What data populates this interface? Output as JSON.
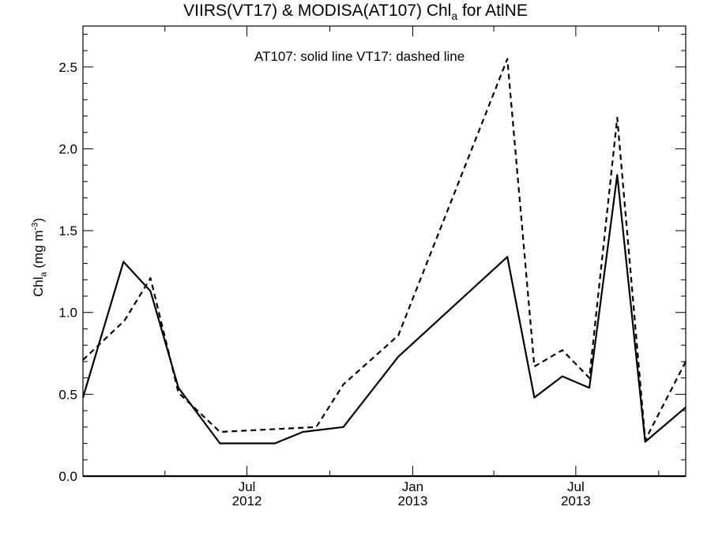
{
  "chart_data": {
    "type": "line",
    "title": {
      "prefix": "VIIRS(VT17) & MODISA(AT107)  Chl",
      "subscript": "a",
      "suffix": " for AtlNE"
    },
    "ylabel": {
      "prefix": "Chl",
      "subscript": "a",
      "middle": " (mg m",
      "superscript": "-3",
      "suffix": ")"
    },
    "annotation": "AT107: solid line   VT17: dashed line",
    "xlim": [
      "2012-01-01",
      "2013-10-31"
    ],
    "ylim": [
      0,
      2.75
    ],
    "y_ticks": [
      "0.0",
      "0.5",
      "1.0",
      "1.5",
      "2.0",
      "2.5"
    ],
    "x_ticks": [
      {
        "date": "2012-07-01",
        "line1": "Jul",
        "line2": "2012"
      },
      {
        "date": "2013-01-01",
        "line1": "Jan",
        "line2": "2013"
      },
      {
        "date": "2013-07-01",
        "line1": "Jul",
        "line2": "2013"
      }
    ],
    "x_minor_ticks": [
      "2012-04-01",
      "2012-10-01",
      "2013-04-01",
      "2013-10-01"
    ],
    "grid": false,
    "series": [
      {
        "name": "AT107",
        "style": "solid",
        "color": "#000000",
        "x": [
          "2012-01-01",
          "2012-02-15",
          "2012-03-16",
          "2012-04-16",
          "2012-06-01",
          "2012-08-01",
          "2012-09-01",
          "2012-10-16",
          "2012-12-16",
          "2013-04-16",
          "2013-05-16",
          "2013-06-16",
          "2013-07-16",
          "2013-08-16",
          "2013-09-16",
          "2013-10-31"
        ],
        "y": [
          0.48,
          1.31,
          1.13,
          0.54,
          0.2,
          0.2,
          0.27,
          0.3,
          0.73,
          1.34,
          0.48,
          0.61,
          0.54,
          1.84,
          0.21,
          0.42
        ]
      },
      {
        "name": "VT17",
        "style": "dashed",
        "color": "#000000",
        "x": [
          "2012-01-01",
          "2012-02-16",
          "2012-03-16",
          "2012-04-16",
          "2012-06-01",
          "2012-09-16",
          "2012-10-16",
          "2012-12-16",
          "2013-04-16",
          "2013-05-16",
          "2013-06-16",
          "2013-07-16",
          "2013-08-16",
          "2013-09-16",
          "2013-10-31"
        ],
        "y": [
          0.71,
          0.95,
          1.21,
          0.51,
          0.27,
          0.3,
          0.56,
          0.86,
          2.55,
          0.67,
          0.77,
          0.6,
          2.19,
          0.22,
          0.7
        ]
      }
    ]
  }
}
